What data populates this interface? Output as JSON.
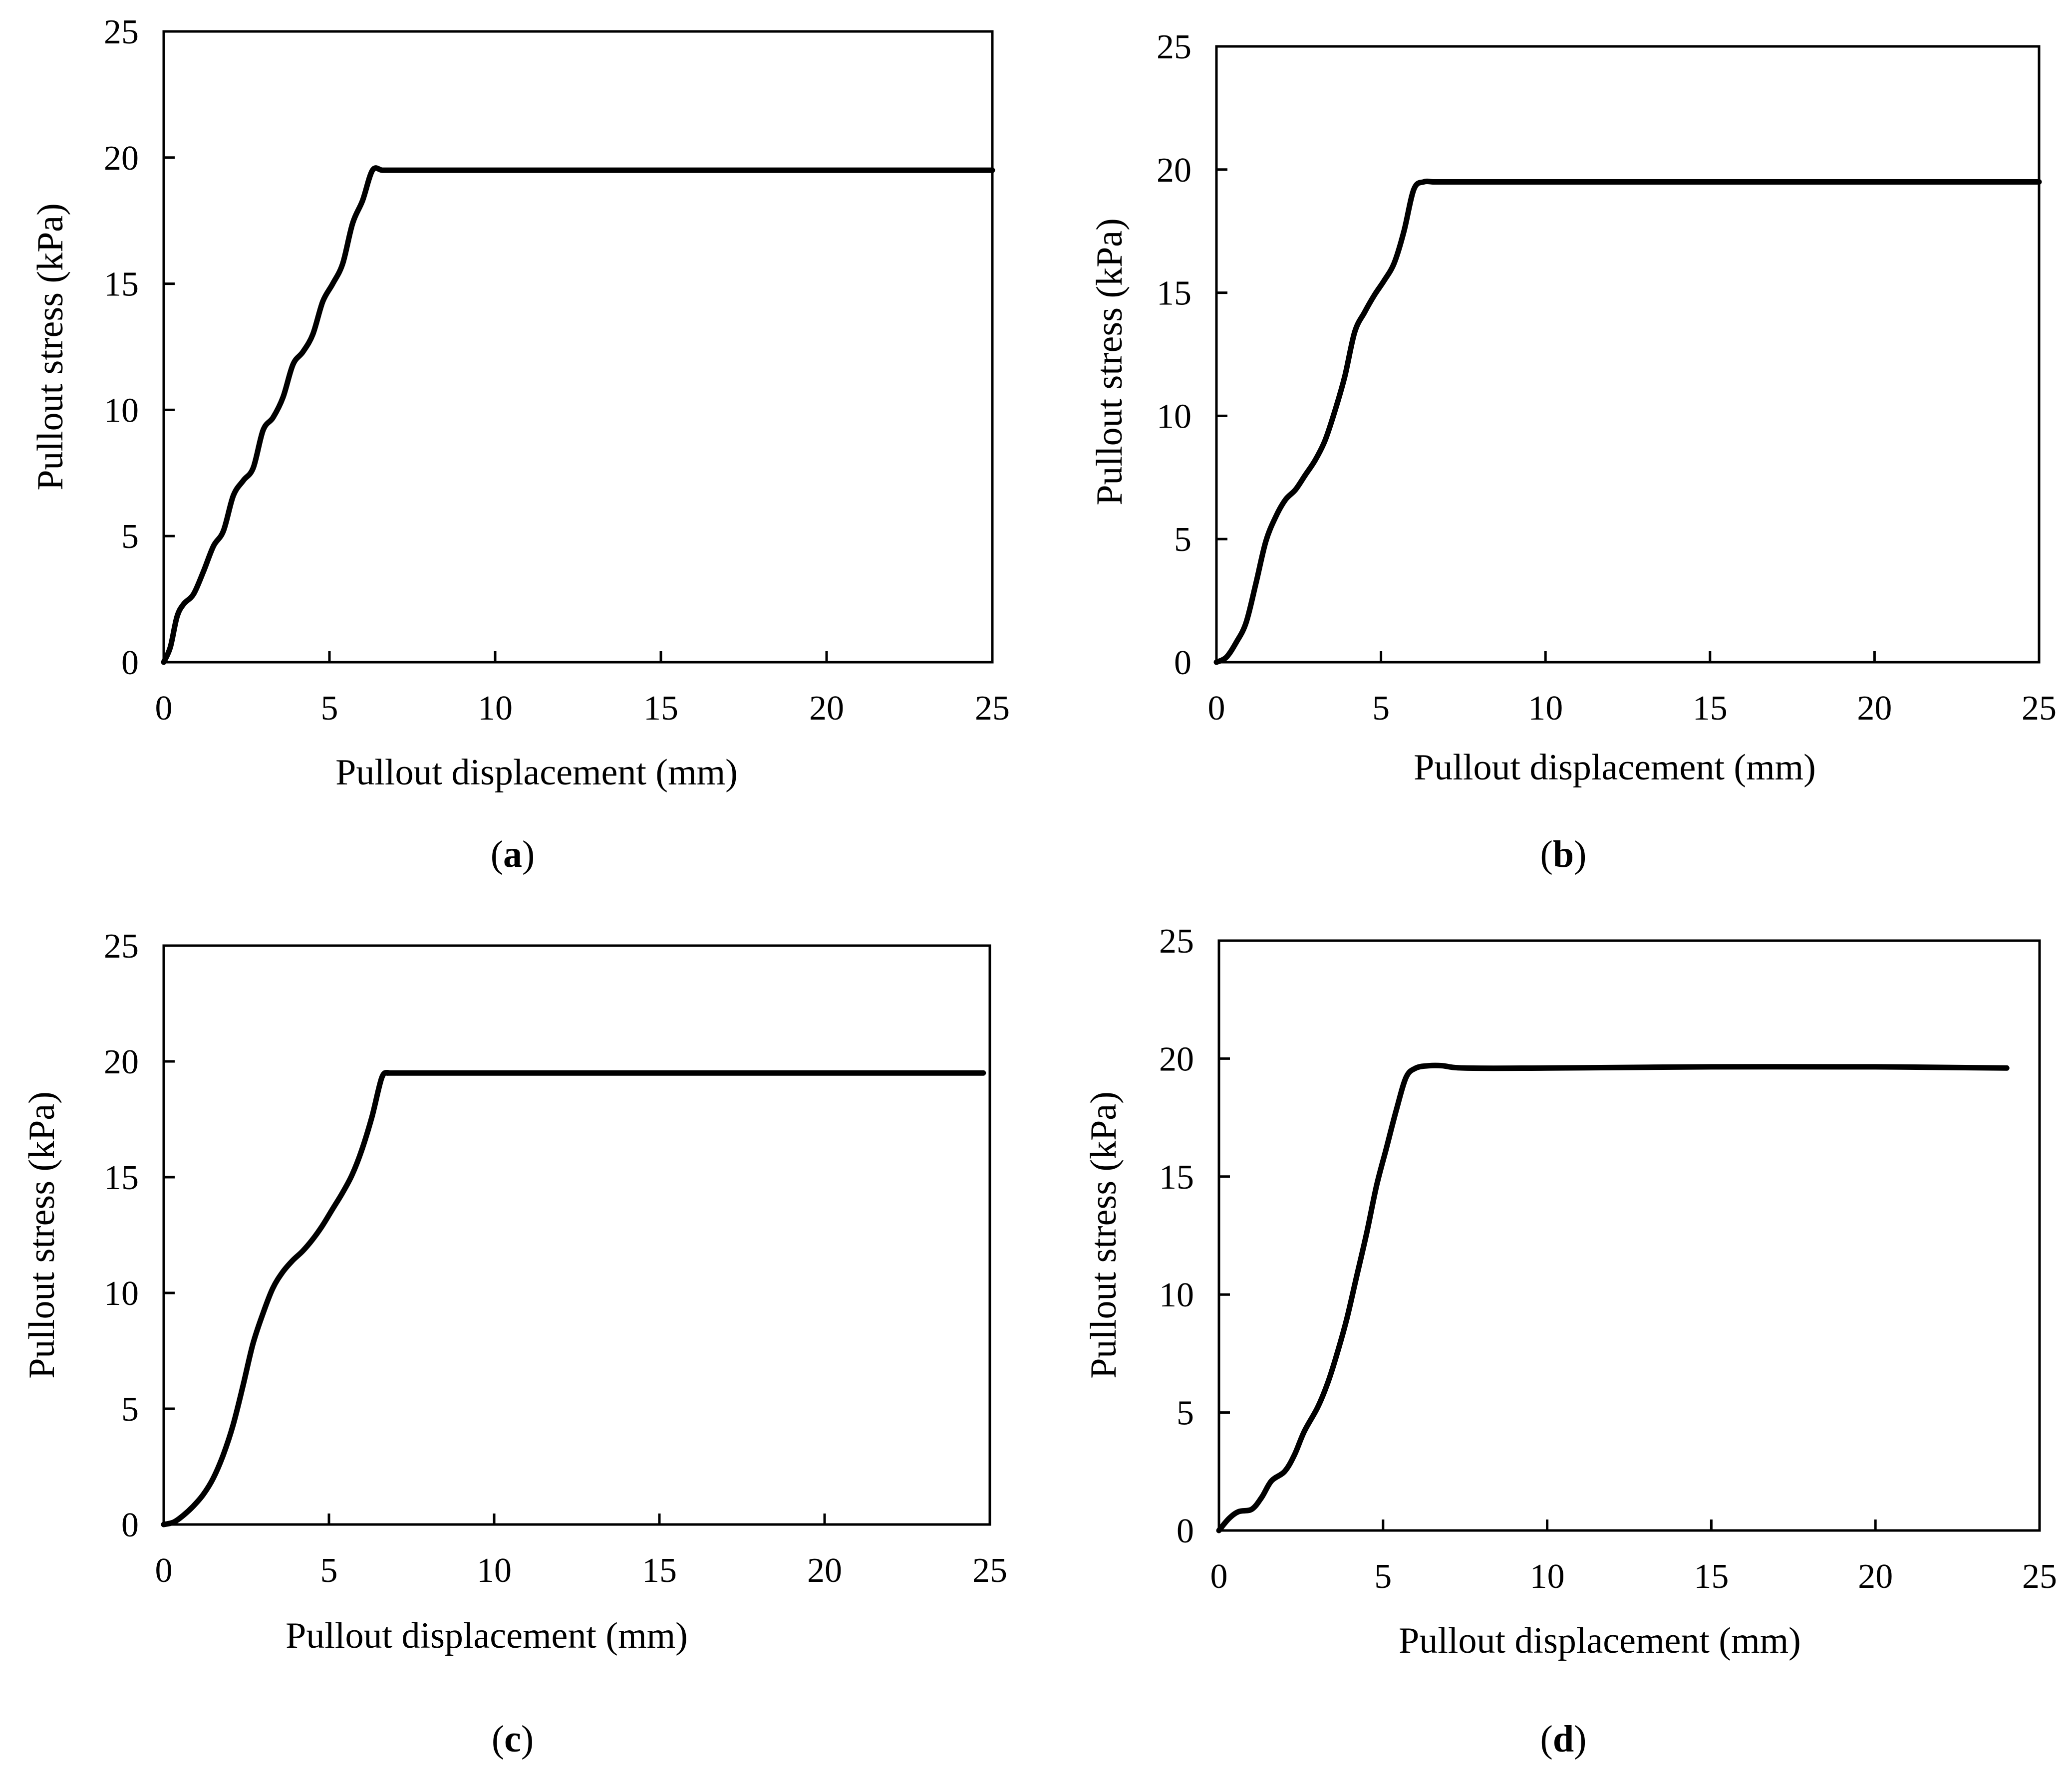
{
  "figure": {
    "background": "#ffffff",
    "line_color": "#000000"
  },
  "chart_data": [
    {
      "type": "line",
      "panel": "(a)",
      "panel_letter": "a",
      "xlabel": "Pullout displacement (mm)",
      "ylabel": "Pullout stress (kPa)",
      "xlim": [
        0,
        25
      ],
      "ylim": [
        0,
        25
      ],
      "xticks": [
        0,
        5,
        10,
        15,
        20,
        25
      ],
      "yticks": [
        0,
        5,
        10,
        15,
        20,
        25
      ],
      "grid": false,
      "series": [
        {
          "name": "Pullout stress",
          "x": [
            0,
            0.2,
            0.4,
            0.6,
            0.9,
            1.2,
            1.5,
            1.8,
            2.1,
            2.4,
            2.7,
            3.0,
            3.3,
            3.6,
            3.9,
            4.2,
            4.5,
            4.8,
            5.1,
            5.4,
            5.7,
            6.0,
            6.3,
            6.6,
            7.0,
            10,
            15,
            20,
            25
          ],
          "y": [
            0,
            0.6,
            1.8,
            2.3,
            2.7,
            3.6,
            4.6,
            5.2,
            6.6,
            7.2,
            7.7,
            9.2,
            9.7,
            10.5,
            11.8,
            12.3,
            13.0,
            14.3,
            15.0,
            15.8,
            17.4,
            18.3,
            19.5,
            19.5,
            19.5,
            19.5,
            19.5,
            19.5,
            19.5
          ]
        }
      ]
    },
    {
      "type": "line",
      "panel": "(b)",
      "panel_letter": "b",
      "xlabel": "Pullout displacement (mm)",
      "ylabel": "Pullout stress (kPa)",
      "xlim": [
        0,
        25
      ],
      "ylim": [
        0,
        25
      ],
      "xticks": [
        0,
        5,
        10,
        15,
        20,
        25
      ],
      "yticks": [
        0,
        5,
        10,
        15,
        20,
        25
      ],
      "grid": false,
      "series": [
        {
          "name": "Pullout stress",
          "x": [
            0,
            0.3,
            0.6,
            0.9,
            1.2,
            1.5,
            1.8,
            2.1,
            2.4,
            2.7,
            3.0,
            3.3,
            3.6,
            3.9,
            4.2,
            4.5,
            4.8,
            5.1,
            5.4,
            5.7,
            6.0,
            6.3,
            6.6,
            7.0,
            10,
            15,
            20,
            25
          ],
          "y": [
            0,
            0.2,
            0.8,
            1.6,
            3.2,
            4.9,
            5.9,
            6.6,
            7.0,
            7.6,
            8.2,
            9.0,
            10.2,
            11.6,
            13.4,
            14.2,
            14.9,
            15.5,
            16.2,
            17.5,
            19.2,
            19.5,
            19.5,
            19.5,
            19.5,
            19.5,
            19.5,
            19.5
          ]
        }
      ]
    },
    {
      "type": "line",
      "panel": "(c)",
      "panel_letter": "c",
      "xlabel": "Pullout displacement (mm)",
      "ylabel": "Pullout stress (kPa)",
      "xlim": [
        0,
        25
      ],
      "ylim": [
        0,
        25
      ],
      "xticks": [
        0,
        5,
        10,
        15,
        20,
        25
      ],
      "yticks": [
        0,
        5,
        10,
        15,
        20,
        25
      ],
      "grid": false,
      "series": [
        {
          "name": "Pullout stress",
          "x": [
            0,
            0.3,
            0.6,
            0.9,
            1.2,
            1.5,
            1.8,
            2.1,
            2.4,
            2.7,
            3.0,
            3.3,
            3.6,
            3.9,
            4.2,
            4.5,
            4.8,
            5.1,
            5.4,
            5.7,
            6.0,
            6.3,
            6.6,
            6.8,
            7.0,
            10,
            15,
            20,
            24.8
          ],
          "y": [
            0,
            0.1,
            0.4,
            0.8,
            1.3,
            2.0,
            3.0,
            4.3,
            6.0,
            7.8,
            9.1,
            10.2,
            10.9,
            11.4,
            11.8,
            12.3,
            12.9,
            13.6,
            14.3,
            15.1,
            16.2,
            17.6,
            19.3,
            19.5,
            19.5,
            19.5,
            19.5,
            19.5,
            19.5
          ]
        }
      ]
    },
    {
      "type": "line",
      "panel": "(d)",
      "panel_letter": "d",
      "xlabel": "Pullout displacement (mm)",
      "ylabel": "Pullout stress (kPa)",
      "xlim": [
        0,
        25
      ],
      "ylim": [
        0,
        25
      ],
      "xticks": [
        0,
        5,
        10,
        15,
        20,
        25
      ],
      "yticks": [
        0,
        5,
        10,
        15,
        20,
        25
      ],
      "grid": false,
      "series": [
        {
          "name": "Pullout stress",
          "x": [
            0,
            0.3,
            0.6,
            1.0,
            1.3,
            1.6,
            2.0,
            2.3,
            2.6,
            3.0,
            3.3,
            3.6,
            3.9,
            4.2,
            4.5,
            4.8,
            5.1,
            5.4,
            5.7,
            6.0,
            6.4,
            6.8,
            7.5,
            10,
            15,
            20,
            24
          ],
          "y": [
            0,
            0.5,
            0.8,
            0.9,
            1.4,
            2.1,
            2.5,
            3.2,
            4.2,
            5.2,
            6.2,
            7.5,
            9.0,
            10.8,
            12.6,
            14.6,
            16.2,
            17.8,
            19.2,
            19.6,
            19.7,
            19.7,
            19.6,
            19.6,
            19.65,
            19.65,
            19.6
          ]
        }
      ]
    }
  ]
}
